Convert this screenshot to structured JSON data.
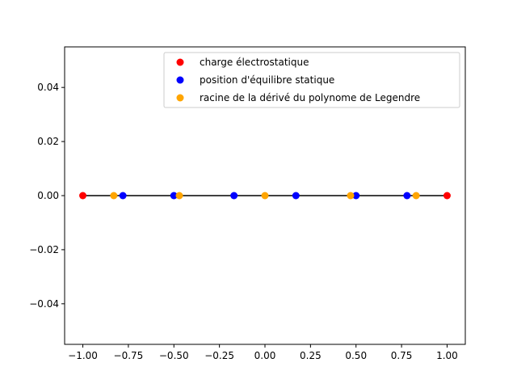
{
  "chart_data": {
    "type": "scatter",
    "title": "",
    "xlabel": "",
    "ylabel": "",
    "xlim": [
      -1.1,
      1.1
    ],
    "ylim": [
      -0.055,
      0.055
    ],
    "xticks": [
      -1.0,
      -0.75,
      -0.5,
      -0.25,
      0.0,
      0.25,
      0.5,
      0.75,
      1.0
    ],
    "yticks": [
      -0.04,
      -0.02,
      0.0,
      0.02,
      0.04
    ],
    "xtick_labels": [
      "−1.00",
      "−0.75",
      "−0.50",
      "−0.25",
      "0.00",
      "0.25",
      "0.50",
      "0.75",
      "1.00"
    ],
    "ytick_labels": [
      "−0.04",
      "−0.02",
      "0.00",
      "0.02",
      "0.04"
    ],
    "grid": false,
    "legend_position": "top-right",
    "line": {
      "x": [
        -1.0,
        1.0
      ],
      "y": [
        0.0,
        0.0
      ],
      "color": "#000000"
    },
    "series": [
      {
        "name": "charge électrostatique",
        "color": "#ff0000",
        "x": [
          -1.0,
          1.0
        ],
        "y": [
          0.0,
          0.0
        ]
      },
      {
        "name": "position d'équilibre statique",
        "color": "#0000ff",
        "x": [
          -0.78,
          -0.5,
          -0.17,
          0.17,
          0.5,
          0.78
        ],
        "y": [
          0.0,
          0.0,
          0.0,
          0.0,
          0.0,
          0.0
        ]
      },
      {
        "name": "racine de la dérivé du polynome de Legendre",
        "color": "#ffa500",
        "x": [
          -0.83,
          -0.47,
          0.0,
          0.47,
          0.83
        ],
        "y": [
          0.0,
          0.0,
          0.0,
          0.0,
          0.0
        ]
      }
    ],
    "draw_order": [
      1,
      2,
      0
    ]
  }
}
